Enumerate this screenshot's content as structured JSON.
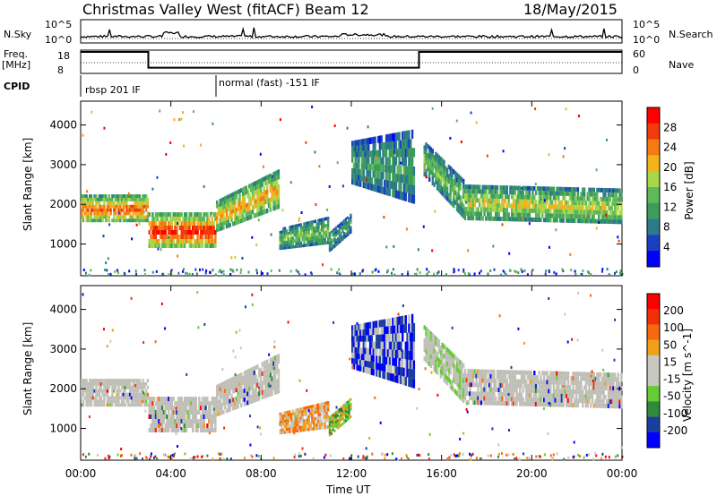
{
  "header": {
    "station": "Christmas Valley West (fitACF)",
    "beam": "Beam 12",
    "date": "18/May/2015"
  },
  "top_labels": {
    "nsky": "N.Sky",
    "nsky_high": "10^5",
    "nsky_low": "10^0",
    "nsearch": "N.Search",
    "nsearch_high": "10^5",
    "nsearch_low": "10^0",
    "freq": "Freq.",
    "freq_unit": "[MHz]",
    "freq_high": "18",
    "freq_low": "8",
    "nave": "Nave",
    "nave_high": "60",
    "nave_low": "0",
    "cpid": "CPID",
    "cpid_1": "rbsp 201 IF",
    "cpid_2": "normal (fast) -151 IF"
  },
  "colors": {
    "power_scale": [
      "#0000ff",
      "#1a3fc0",
      "#2d7a8c",
      "#3c9c5c",
      "#5fb85a",
      "#a8d74a",
      "#f2b21c",
      "#f57a12",
      "#f23a0a",
      "#ff0000"
    ],
    "velocity_scale": [
      "#0000ff",
      "#1a3fa0",
      "#2f8a3c",
      "#66cc33",
      "#c8c8c0",
      "#c8c8c0",
      "#f0a01a",
      "#f56a10",
      "#f23008",
      "#ff0000"
    ],
    "ground_scatter": "#c0c0b8"
  },
  "chart_data": [
    {
      "type": "line",
      "name": "N.Sky / N.Search / Freq / Nave",
      "x_unit": "hours UT",
      "freq_segments": [
        [
          0,
          18
        ],
        [
          3.0,
          18
        ],
        [
          3.0,
          10
        ],
        [
          15.0,
          10
        ],
        [
          15.0,
          18
        ],
        [
          24,
          18
        ]
      ],
      "cpid_change_hours": [
        6.0
      ]
    },
    {
      "type": "heatmap",
      "panel": "power",
      "ylabel": "Slant Range [km]",
      "yticks": [
        1000,
        2000,
        3000,
        4000
      ],
      "ylim": [
        200,
        4600
      ],
      "colorbar_label": "Power [dB]",
      "colorbar_ticks": [
        "4",
        "8",
        "12",
        "16",
        "20",
        "24",
        "28"
      ]
    },
    {
      "type": "heatmap",
      "panel": "velocity",
      "ylabel": "Slant Range [km]",
      "yticks": [
        1000,
        2000,
        3000,
        4000
      ],
      "ylim": [
        200,
        4600
      ],
      "colorbar_label": "Velocity [m s^-1]",
      "colorbar_ticks": [
        "200",
        "100",
        "50",
        "15",
        "-15",
        "-50",
        "-100",
        "-200"
      ]
    }
  ],
  "xaxis": {
    "label": "Time UT",
    "ticks": [
      "00:00",
      "04:00",
      "08:00",
      "12:00",
      "16:00",
      "20:00",
      "00:00"
    ],
    "xlim": [
      0,
      24
    ]
  }
}
